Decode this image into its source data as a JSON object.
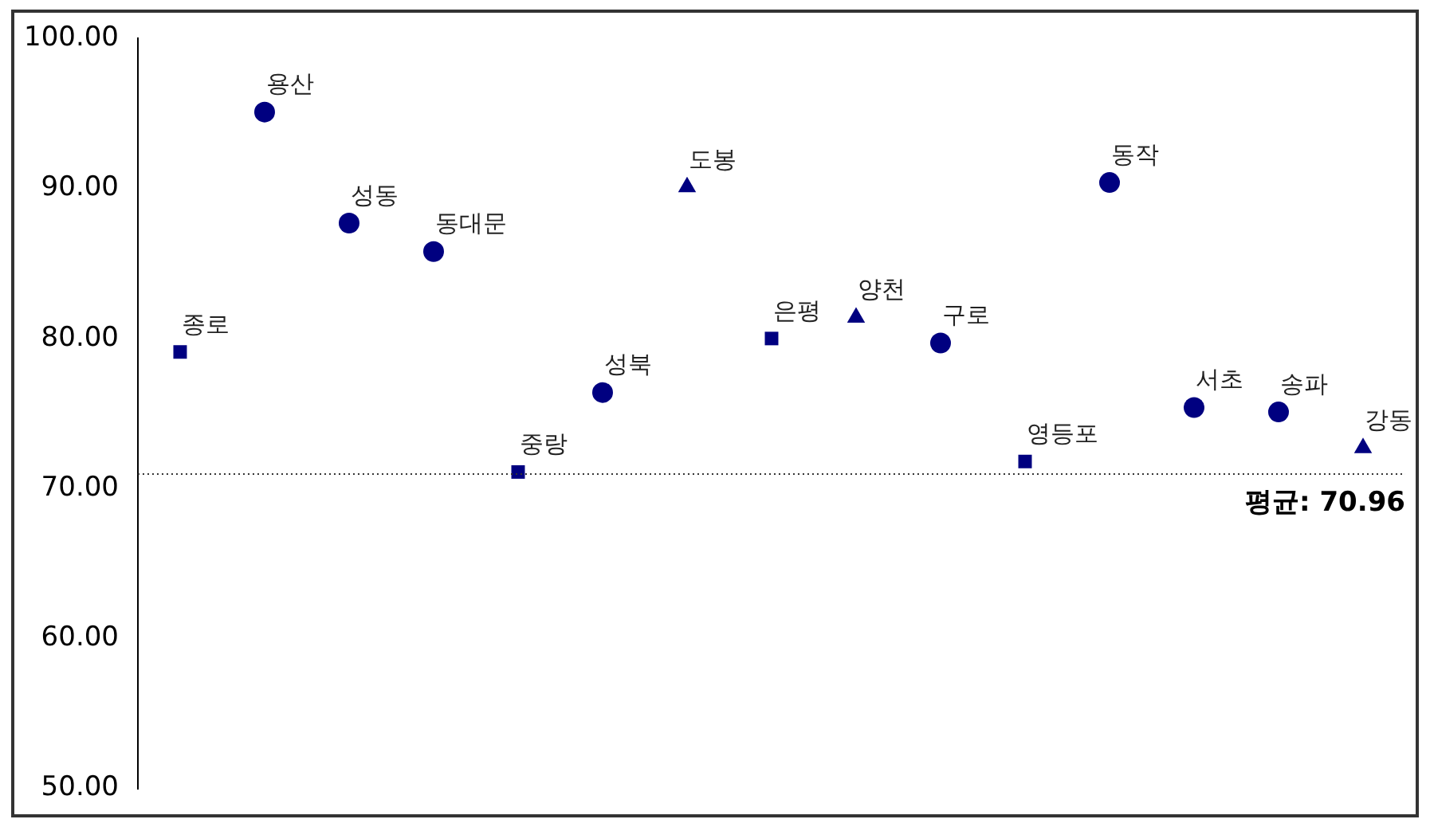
{
  "chart_data": {
    "type": "scatter",
    "categories": [
      null,
      null,
      null,
      null,
      null,
      null,
      null,
      null,
      null,
      null,
      null,
      null,
      null,
      null,
      null
    ],
    "series": [
      {
        "color": "#000080",
        "marker": "square",
        "values": [
          79.1,
          null,
          null,
          null,
          71.1,
          null,
          null,
          80.0,
          null,
          null,
          71.8,
          null,
          null,
          null,
          null
        ],
        "value_labels": [
          "종로",
          null,
          null,
          null,
          "중랑",
          null,
          null,
          "은평",
          null,
          null,
          "영등포",
          null,
          null,
          null,
          null
        ]
      },
      {
        "color": "#000080",
        "marker": "circle",
        "values": [
          null,
          95.1,
          87.7,
          85.8,
          null,
          76.4,
          null,
          null,
          null,
          79.7,
          null,
          90.4,
          75.4,
          75.1,
          null
        ],
        "value_labels": [
          null,
          "용산",
          "성동",
          "동대문",
          null,
          "성북",
          null,
          null,
          null,
          "구로",
          null,
          "동작",
          "서초",
          "송파",
          null
        ]
      },
      {
        "color": "#000080",
        "marker": "triangle",
        "values": [
          null,
          null,
          null,
          null,
          null,
          null,
          90.1,
          null,
          81.4,
          null,
          null,
          null,
          null,
          null,
          72.7
        ],
        "value_labels": [
          null,
          null,
          null,
          null,
          null,
          null,
          "도봉",
          null,
          "양천",
          null,
          null,
          null,
          null,
          null,
          "강동"
        ]
      }
    ],
    "ylim": [
      50,
      100
    ],
    "yticks": [
      {
        "value": 50,
        "label": "50.00"
      },
      {
        "value": 60,
        "label": "60.00"
      },
      {
        "value": 70,
        "label": "70.00"
      },
      {
        "value": 80,
        "label": "80.00"
      },
      {
        "value": 90,
        "label": "90.00"
      },
      {
        "value": 100,
        "label": "100.00"
      }
    ],
    "ref_lines": [
      {
        "axis": "y",
        "value": 70.96,
        "label": "평균: 70.96",
        "line_style": "dotted",
        "color": "#333333"
      }
    ]
  }
}
